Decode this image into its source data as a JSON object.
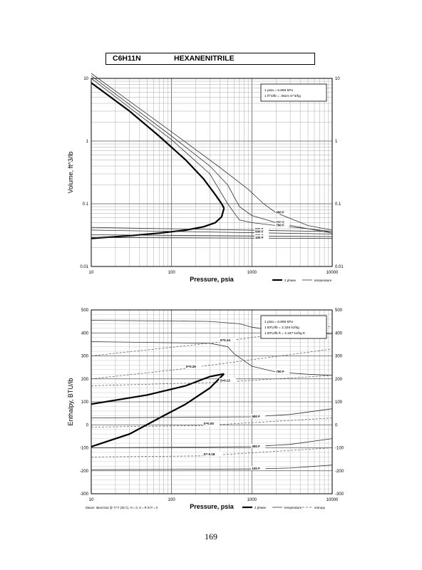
{
  "header": {
    "formula": "C6H11N",
    "name": "HEXANENITRILE"
  },
  "page_number": "169",
  "chart_data": [
    {
      "type": "line",
      "xlabel": "Pressure,  psia",
      "ylabel": "Volume, ft^3/lb",
      "xscale": "log",
      "yscale": "log",
      "xlim": [
        10,
        10000
      ],
      "ylim": [
        0.01,
        10
      ],
      "x_ticks": [
        "10",
        "100",
        "1000",
        "10000"
      ],
      "y_ticks": [
        "0.01",
        "0.1",
        "1",
        "10"
      ],
      "grid": true,
      "conversion_box": [
        "1 psia = 6.895 kPa",
        "1 ft^3/lb = .0624 m^3/kg"
      ],
      "legend": [
        "2 phase",
        "temperature"
      ],
      "legend_position": "bottom-right",
      "series": [
        {
          "style": "2 phase",
          "x": [
            10,
            30,
            70,
            150,
            250,
            350,
            420,
            450
          ],
          "y": [
            8.5,
            3.0,
            1.2,
            0.5,
            0.25,
            0.14,
            0.1,
            0.085
          ]
        },
        {
          "style": "2 phase",
          "x": [
            450,
            420,
            350,
            250,
            150,
            70,
            30,
            10
          ],
          "y": [
            0.085,
            0.062,
            0.05,
            0.043,
            0.038,
            0.034,
            0.031,
            0.028
          ]
        },
        {
          "style": "temperature",
          "label": "900 F",
          "x": [
            10,
            100,
            400,
            900,
            1400,
            2000,
            5000,
            10000
          ],
          "y": [
            12,
            1.4,
            0.38,
            0.17,
            0.1,
            0.072,
            0.045,
            0.038
          ]
        },
        {
          "style": "temperature",
          "label": "800 F",
          "x": [
            10,
            100,
            300,
            500,
            700,
            1000,
            2000,
            5000,
            10000
          ],
          "y": [
            11,
            1.2,
            0.4,
            0.2,
            0.09,
            0.065,
            0.05,
            0.04,
            0.036
          ]
        },
        {
          "style": "temperature",
          "label": "700 F",
          "x": [
            10,
            100,
            300,
            500,
            700,
            1000,
            2000,
            5000,
            10000
          ],
          "y": [
            10,
            1.05,
            0.3,
            0.1,
            0.055,
            0.05,
            0.045,
            0.04,
            0.034
          ]
        },
        {
          "style": "temperature",
          "label": "600 F",
          "x": [
            10,
            10000
          ],
          "y": [
            0.042,
            0.036
          ]
        },
        {
          "style": "temperature",
          "label": "500 F",
          "x": [
            10,
            10000
          ],
          "y": [
            0.038,
            0.033
          ]
        },
        {
          "style": "temperature",
          "label": "300 F",
          "x": [
            10,
            10000
          ],
          "y": [
            0.032,
            0.03
          ]
        },
        {
          "style": "temperature",
          "label": "100 F",
          "x": [
            10,
            10000
          ],
          "y": [
            0.029,
            0.028
          ]
        }
      ]
    },
    {
      "type": "line",
      "xlabel": "Pressure,  psia",
      "ylabel": "Enthalpy, BTU/lb",
      "xscale": "log",
      "xlim": [
        10,
        10000
      ],
      "ylim": [
        -300,
        500
      ],
      "x_ticks": [
        "10",
        "100",
        "1000",
        "10000"
      ],
      "y_ticks": [
        "-300",
        "-200",
        "-100",
        "0",
        "100",
        "200",
        "300",
        "400",
        "500"
      ],
      "grid": true,
      "conversion_box": [
        "1 psia = 6.895 kPa",
        "1 BTU/lb = 2.326 kJ/kg",
        "1 BTU/lb ft = 4.187 kJ/kg K"
      ],
      "legend": [
        "2 phase",
        "temperature",
        "entropy"
      ],
      "legend_position": "bottom-right",
      "footnote": "Datum: Ideal Gas @ 77 F (25 C), H = 0, S = R ln P = 0",
      "series": [
        {
          "style": "2 phase",
          "x": [
            10,
            50,
            150,
            300,
            450
          ],
          "y": [
            90,
            130,
            170,
            210,
            222
          ]
        },
        {
          "style": "2 phase",
          "x": [
            450,
            300,
            150,
            80,
            30,
            10
          ],
          "y": [
            222,
            160,
            90,
            40,
            -40,
            -95
          ]
        },
        {
          "style": "temperature",
          "label": "900 F",
          "x": [
            10,
            300,
            700,
            1000,
            2000,
            5000,
            10000
          ],
          "y": [
            455,
            450,
            440,
            425,
            410,
            400,
            395
          ]
        },
        {
          "style": "temperature",
          "label": "700 F",
          "x": [
            10,
            300,
            500,
            600,
            1000,
            2000,
            5000,
            10000
          ],
          "y": [
            362,
            355,
            340,
            310,
            255,
            230,
            220,
            215
          ]
        },
        {
          "style": "temperature",
          "label": "500 F",
          "x": [
            10,
            1000,
            3000,
            10000
          ],
          "y": [
            30,
            35,
            45,
            70
          ]
        },
        {
          "style": "temperature",
          "label": "300 F",
          "x": [
            10,
            1000,
            3000,
            10000
          ],
          "y": [
            -100,
            -95,
            -85,
            -60
          ]
        },
        {
          "style": "temperature",
          "label": "100 F",
          "x": [
            10,
            1000,
            3000,
            10000
          ],
          "y": [
            -195,
            -192,
            -188,
            -175
          ]
        },
        {
          "style": "entropy",
          "label": "S=0.34",
          "x": [
            10,
            400,
            10000
          ],
          "y": [
            300,
            360,
            430
          ]
        },
        {
          "style": "entropy",
          "label": "S=0.29",
          "x": [
            10,
            150,
            10000
          ],
          "y": [
            200,
            245,
            330
          ]
        },
        {
          "style": "entropy",
          "label": "S=0.22",
          "x": [
            10,
            400,
            10000
          ],
          "y": [
            170,
            185,
            215
          ]
        },
        {
          "style": "entropy",
          "label": "S=0.00",
          "x": [
            10,
            250,
            10000
          ],
          "y": [
            -10,
            -3,
            30
          ]
        },
        {
          "style": "entropy",
          "label": "S=-0.18",
          "x": [
            10,
            250,
            10000
          ],
          "y": [
            -140,
            -135,
            -100
          ]
        }
      ]
    }
  ]
}
